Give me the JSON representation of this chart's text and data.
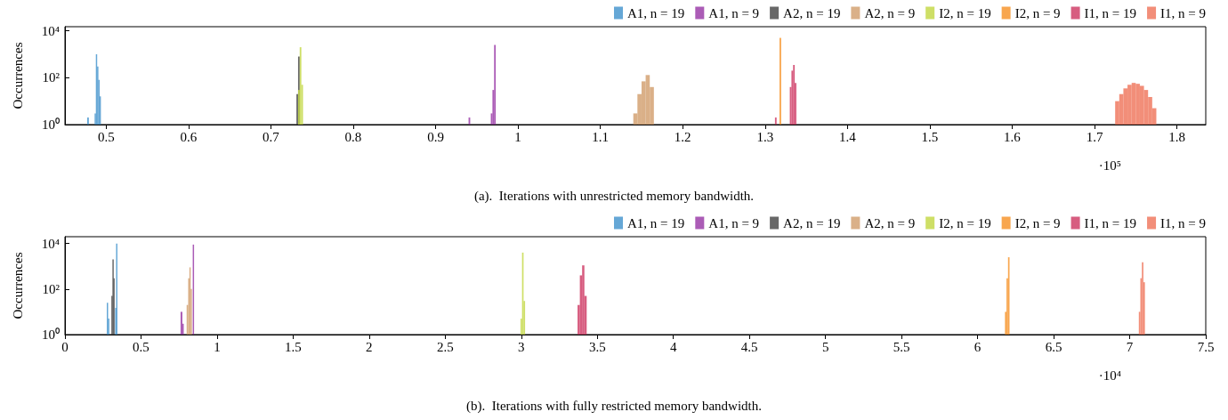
{
  "chart_data": [
    {
      "type": "histogram",
      "title": "(a).  Iterations with unrestricted memory bandwidth.",
      "ylabel": "Occurrences",
      "annotations": [
        "·10⁵"
      ],
      "log": "y",
      "grid": false,
      "legend": "top right",
      "xlim": [
        0.45,
        1.835
      ],
      "xticks": [
        0.5,
        0.6,
        0.7,
        0.8,
        0.9,
        1,
        1.1,
        1.2,
        1.3,
        1.4,
        1.5,
        1.6,
        1.7,
        1.8
      ],
      "ylim": [
        1,
        15000
      ],
      "yticks": [
        {
          "value": 1,
          "label": "10⁰"
        },
        {
          "value": 100,
          "label": "10²"
        },
        {
          "value": 10000,
          "label": "10⁴"
        }
      ],
      "bins": [
        0.477,
        0.479,
        0.486,
        0.4875,
        0.489,
        0.4905,
        0.492,
        0.4935,
        0.731,
        0.733,
        0.735,
        0.737,
        0.739,
        0.94,
        0.942,
        0.967,
        0.969,
        0.971,
        0.973,
        1.14,
        1.145,
        1.15,
        1.155,
        1.16,
        1.165,
        1.312,
        1.314,
        1.3175,
        1.3195,
        1.33,
        1.332,
        1.334,
        1.336,
        1.338,
        1.725,
        1.73,
        1.735,
        1.74,
        1.745,
        1.75,
        1.755,
        1.76,
        1.765,
        1.77,
        1.775
      ],
      "series": [
        {
          "name": "A1, n = 19",
          "color": "#4a98cf",
          "values": [
            2,
            null,
            3,
            1000,
            300,
            80,
            16,
            null,
            null,
            null,
            null,
            null,
            null,
            null,
            null,
            null,
            null,
            null,
            null,
            null,
            null,
            null,
            null,
            null,
            null,
            null,
            null,
            null,
            null,
            null,
            null,
            null,
            null,
            null,
            null,
            null,
            null,
            null,
            null,
            null,
            null,
            null,
            null,
            null
          ]
        },
        {
          "name": "A1, n = 9",
          "color": "#9c3fa9",
          "values": [
            null,
            null,
            null,
            null,
            null,
            null,
            null,
            null,
            null,
            null,
            null,
            null,
            null,
            2,
            null,
            3,
            30,
            2500,
            null,
            null,
            null,
            null,
            null,
            null,
            null,
            null,
            null,
            null,
            null,
            null,
            null,
            null,
            null,
            null,
            null,
            null,
            null,
            null,
            null,
            null,
            null,
            null,
            null,
            null
          ]
        },
        {
          "name": "A2, n = 19",
          "color": "#4d4d4d",
          "values": [
            null,
            null,
            null,
            null,
            null,
            null,
            null,
            null,
            20,
            800,
            null,
            null,
            null,
            null,
            null,
            null,
            null,
            null,
            null,
            null,
            null,
            null,
            null,
            null,
            null,
            null,
            null,
            null,
            null,
            null,
            null,
            null,
            null,
            null,
            null,
            null,
            null,
            null,
            null,
            null,
            null,
            null,
            null,
            null
          ]
        },
        {
          "name": "A2, n = 9",
          "color": "#d3a273",
          "values": [
            null,
            null,
            null,
            null,
            null,
            null,
            null,
            null,
            null,
            null,
            null,
            null,
            null,
            null,
            null,
            null,
            null,
            null,
            null,
            3,
            20,
            70,
            130,
            40,
            null,
            null,
            null,
            null,
            null,
            null,
            null,
            null,
            null,
            null,
            null,
            null,
            null,
            null,
            null,
            null,
            null,
            null,
            null,
            null
          ]
        },
        {
          "name": "I2, n = 19",
          "color": "#c6d94b",
          "values": [
            null,
            null,
            null,
            null,
            null,
            null,
            null,
            null,
            null,
            30,
            2000,
            50,
            null,
            null,
            null,
            null,
            null,
            null,
            null,
            null,
            null,
            null,
            null,
            null,
            null,
            null,
            null,
            null,
            null,
            null,
            null,
            null,
            null,
            null,
            null,
            null,
            null,
            null,
            null,
            null,
            null,
            null,
            null,
            null
          ]
        },
        {
          "name": "I2, n = 9",
          "color": "#f7962f",
          "values": [
            null,
            null,
            null,
            null,
            null,
            null,
            null,
            null,
            null,
            null,
            null,
            null,
            null,
            null,
            null,
            null,
            null,
            null,
            null,
            null,
            null,
            null,
            null,
            null,
            null,
            null,
            null,
            5000,
            null,
            null,
            null,
            null,
            null,
            null,
            null,
            null,
            null,
            null,
            null,
            null,
            null,
            null,
            null,
            null
          ]
        },
        {
          "name": "I1, n = 19",
          "color": "#d0416a",
          "values": [
            null,
            null,
            null,
            null,
            null,
            null,
            null,
            null,
            null,
            null,
            null,
            null,
            null,
            null,
            null,
            null,
            null,
            null,
            null,
            null,
            null,
            null,
            null,
            null,
            null,
            2,
            null,
            null,
            null,
            40,
            200,
            350,
            60,
            null,
            null,
            null,
            null,
            null,
            null,
            null,
            null,
            null,
            null,
            null
          ]
        },
        {
          "name": "I1, n = 9",
          "color": "#f07a62",
          "values": [
            null,
            null,
            null,
            null,
            null,
            null,
            null,
            null,
            null,
            null,
            null,
            null,
            null,
            null,
            null,
            null,
            null,
            null,
            null,
            null,
            null,
            null,
            null,
            null,
            null,
            null,
            null,
            null,
            null,
            null,
            null,
            null,
            null,
            null,
            10,
            20,
            35,
            50,
            60,
            55,
            45,
            30,
            15,
            5
          ]
        }
      ]
    },
    {
      "type": "histogram",
      "title": "(b).  Iterations with fully restricted memory bandwidth.",
      "ylabel": "Occurrences",
      "annotations": [
        "·10⁴"
      ],
      "log": "y",
      "grid": false,
      "legend": "top right",
      "xlim": [
        0,
        7.5
      ],
      "xticks": [
        0,
        0.5,
        1,
        1.5,
        2,
        2.5,
        3,
        3.5,
        4,
        4.5,
        5,
        5.5,
        6,
        6.5,
        7,
        7.5
      ],
      "ylim": [
        1,
        20000
      ],
      "yticks": [
        {
          "value": 1,
          "label": "10⁰"
        },
        {
          "value": 100,
          "label": "10²"
        },
        {
          "value": 10000,
          "label": "10⁴"
        }
      ],
      "bins": [
        0.275,
        0.283,
        0.291,
        0.305,
        0.312,
        0.318,
        0.324,
        0.33,
        0.336,
        0.34,
        0.76,
        0.772,
        0.78,
        0.8,
        0.81,
        0.818,
        0.826,
        0.834,
        0.84,
        0.848,
        2.995,
        3.005,
        3.015,
        3.025,
        3.37,
        3.385,
        3.4,
        3.415,
        3.43,
        6.18,
        6.19,
        6.2,
        6.21,
        7.06,
        7.07,
        7.08,
        7.09,
        7.1
      ],
      "series": [
        {
          "name": "A1, n = 19",
          "color": "#4a98cf",
          "values": [
            25,
            5,
            null,
            null,
            null,
            null,
            null,
            15,
            10000,
            null,
            null,
            null,
            null,
            null,
            null,
            null,
            null,
            null,
            null,
            null,
            null,
            null,
            null,
            null,
            null,
            null,
            null,
            null,
            null,
            null,
            null,
            null,
            null,
            null,
            null,
            null,
            null
          ]
        },
        {
          "name": "A1, n = 9",
          "color": "#9c3fa9",
          "values": [
            null,
            null,
            null,
            null,
            null,
            null,
            null,
            null,
            null,
            null,
            10,
            3,
            null,
            null,
            null,
            null,
            null,
            null,
            9000,
            null,
            null,
            null,
            null,
            null,
            null,
            null,
            null,
            null,
            null,
            null,
            null,
            null,
            null,
            null,
            null,
            null,
            null
          ]
        },
        {
          "name": "A2, n = 19",
          "color": "#4d4d4d",
          "values": [
            null,
            null,
            null,
            50,
            2000,
            300,
            null,
            null,
            null,
            null,
            null,
            null,
            null,
            null,
            null,
            null,
            null,
            null,
            null,
            null,
            null,
            null,
            null,
            null,
            null,
            null,
            null,
            null,
            null,
            null,
            null,
            null,
            null,
            null,
            null,
            null,
            null
          ]
        },
        {
          "name": "A2, n = 9",
          "color": "#d3a273",
          "values": [
            null,
            null,
            null,
            null,
            null,
            null,
            null,
            null,
            null,
            null,
            null,
            null,
            null,
            20,
            300,
            900,
            100,
            null,
            null,
            null,
            null,
            null,
            null,
            null,
            null,
            null,
            null,
            null,
            null,
            null,
            null,
            null,
            null,
            null,
            null,
            null,
            null
          ]
        },
        {
          "name": "I2, n = 19",
          "color": "#c6d94b",
          "values": [
            null,
            null,
            null,
            null,
            null,
            null,
            null,
            null,
            null,
            null,
            null,
            null,
            null,
            null,
            null,
            null,
            null,
            null,
            null,
            null,
            5,
            4000,
            30,
            null,
            null,
            null,
            null,
            null,
            null,
            null,
            null,
            null,
            null,
            null,
            null,
            null,
            null
          ]
        },
        {
          "name": "I2, n = 9",
          "color": "#f7962f",
          "values": [
            null,
            null,
            null,
            null,
            null,
            null,
            null,
            null,
            null,
            null,
            null,
            null,
            null,
            null,
            null,
            null,
            null,
            null,
            null,
            null,
            null,
            null,
            null,
            null,
            null,
            null,
            null,
            null,
            null,
            10,
            300,
            2500,
            null,
            null,
            null,
            null,
            null
          ]
        },
        {
          "name": "I1, n = 19",
          "color": "#d0416a",
          "values": [
            null,
            null,
            null,
            null,
            null,
            null,
            null,
            null,
            null,
            null,
            null,
            null,
            null,
            null,
            null,
            null,
            null,
            null,
            null,
            null,
            null,
            null,
            null,
            null,
            20,
            400,
            1100,
            50,
            null,
            null,
            null,
            null,
            null,
            null,
            null,
            null,
            null
          ]
        },
        {
          "name": "I1, n = 9",
          "color": "#f07a62",
          "values": [
            null,
            null,
            null,
            null,
            null,
            null,
            null,
            null,
            null,
            null,
            null,
            null,
            null,
            null,
            null,
            null,
            null,
            null,
            null,
            null,
            null,
            null,
            null,
            null,
            null,
            null,
            null,
            null,
            null,
            null,
            null,
            null,
            null,
            10,
            300,
            1500,
            200
          ]
        }
      ]
    }
  ]
}
